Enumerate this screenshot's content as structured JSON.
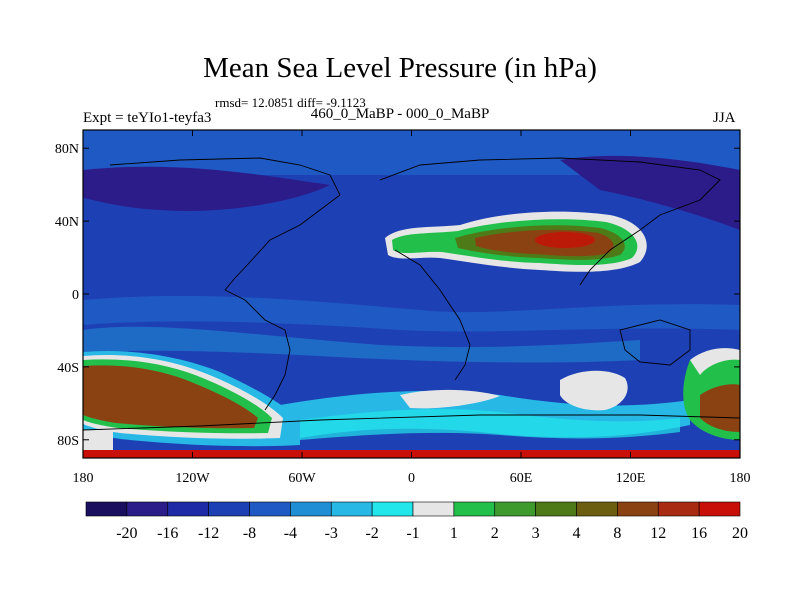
{
  "title": "Mean Sea Level Pressure (in hPa)",
  "stats_line": "rmsd= 12.0851 diff= -9.1123",
  "left_label": "Expt = teYIo1-teyfa3",
  "center_label": "460_0_MaBP - 000_0_MaBP",
  "right_label": "JJA",
  "chart_data": {
    "type": "heatmap",
    "x_ticks": [
      {
        "value": -180,
        "label": "180"
      },
      {
        "value": -120,
        "label": "120W"
      },
      {
        "value": -60,
        "label": "60W"
      },
      {
        "value": 0,
        "label": "0"
      },
      {
        "value": 60,
        "label": "60E"
      },
      {
        "value": 120,
        "label": "120E"
      },
      {
        "value": 180,
        "label": "180"
      }
    ],
    "y_ticks": [
      {
        "value": 80,
        "label": "80N"
      },
      {
        "value": 40,
        "label": "40N"
      },
      {
        "value": 0,
        "label": "0"
      },
      {
        "value": -40,
        "label": "40S"
      },
      {
        "value": -80,
        "label": "80S"
      }
    ],
    "xlim": [
      -180,
      180
    ],
    "ylim": [
      -90,
      90
    ],
    "colorbar": {
      "colors": [
        "#1a0f5e",
        "#2b1c8a",
        "#1f2aa6",
        "#1e40b5",
        "#1f59c4",
        "#1f8ed4",
        "#27b8e6",
        "#22e6ea",
        "#e6e6e6",
        "#22c04a",
        "#3f9a2e",
        "#4e7a18",
        "#6b5e10",
        "#8a4212",
        "#a82a10",
        "#c81008"
      ],
      "boundaries": [
        "-20",
        "-16",
        "-12",
        "-8",
        "-4",
        "-3",
        "-2",
        "-1",
        "1",
        "2",
        "3",
        "4",
        "8",
        "12",
        "16",
        "20"
      ]
    },
    "field_regions": [
      {
        "desc": "background",
        "color": "#1e40b5"
      },
      {
        "desc": "band-north-top",
        "color": "#1f59c4"
      },
      {
        "desc": "northern-lows",
        "color": "#2b1c8a"
      },
      {
        "desc": "asia-high",
        "color": "#6b5e10"
      },
      {
        "desc": "asia-high-core",
        "color": "#a82a10"
      },
      {
        "desc": "southern-high",
        "color": "#8a4212"
      },
      {
        "desc": "south-east-high",
        "color": "#8a4212"
      },
      {
        "desc": "south-central-white",
        "color": "#e6e6e6"
      }
    ]
  }
}
